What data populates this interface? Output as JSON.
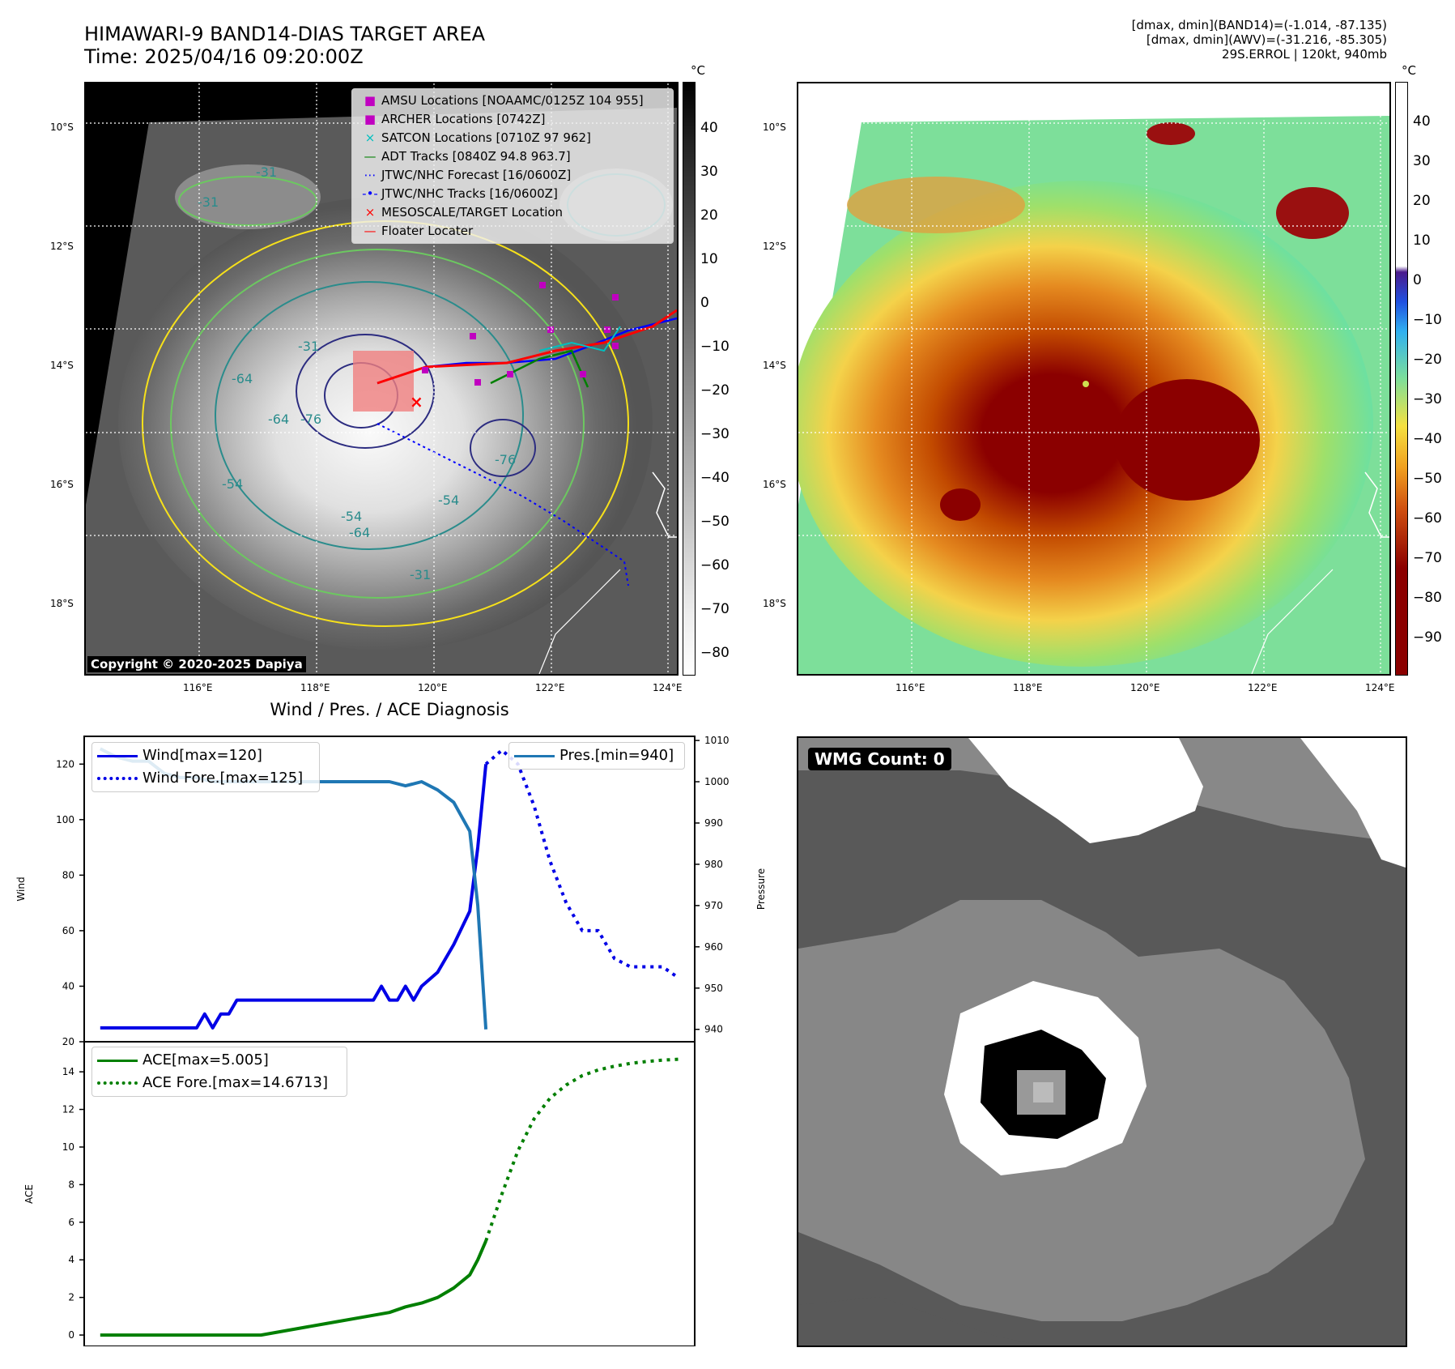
{
  "header": {
    "title_line1": "HIMAWARI-9 BAND14-DIAS TARGET AREA",
    "title_line2": "Time: 2025/04/16 09:20:00Z",
    "stats_line1": "[dmax, dmin](BAND14)=(-1.014, -87.135)",
    "stats_line2": "[dmax, dmin](AWV)=(-31.216, -85.305)",
    "stats_line3": "29S.ERROL | 120kt, 940mb"
  },
  "map": {
    "lat_labels": [
      "10°S",
      "12°S",
      "14°S",
      "16°S",
      "18°S"
    ],
    "lon_labels": [
      "116°E",
      "118°E",
      "120°E",
      "122°E",
      "124°E"
    ],
    "copyright": "Copyright © 2020-2025 Dapiya",
    "contour_labels": [
      "-31",
      "-31",
      "-31",
      "-31",
      "-54",
      "-54",
      "-64",
      "-64",
      "-64",
      "-76",
      "-76",
      "-54"
    ],
    "colors": {
      "land_line": "#ffffff",
      "contour_yellow": "#f7e11a",
      "contour_green": "#6cc860",
      "contour_teal": "#2a8c8c",
      "contour_navy": "#2c2c80"
    }
  },
  "legend": {
    "items": [
      {
        "label": "AMSU Locations [NOAAMC/0125Z 104 955]",
        "marker": "square",
        "color": "#c000c0"
      },
      {
        "label": "ARCHER Locations [0742Z]",
        "marker": "square",
        "color": "#c000c0"
      },
      {
        "label": "SATCON Locations [0710Z 97 962]",
        "marker": "x",
        "color": "#00c0c0"
      },
      {
        "label": "ADT Tracks [0840Z 94.8 963.7]",
        "marker": "line",
        "color": "#008000"
      },
      {
        "label": "JTWC/NHC Forecast [16/0600Z]",
        "marker": "dotted",
        "color": "#0000ff"
      },
      {
        "label": "JTWC/NHC Tracks [16/0600Z]",
        "marker": "line-dot",
        "color": "#0000ff"
      },
      {
        "label": "MESOSCALE/TARGET Location",
        "marker": "x",
        "color": "#ff0000"
      },
      {
        "label": "Floater Locater",
        "marker": "line",
        "color": "#ff0000"
      }
    ]
  },
  "colorbar_gray": {
    "unit": "°C",
    "ticks": [
      "40",
      "30",
      "20",
      "10",
      "0",
      "−10",
      "−20",
      "−30",
      "−40",
      "−50",
      "−60",
      "−70",
      "−80"
    ]
  },
  "colorbar_color": {
    "unit": "°C",
    "ticks": [
      "40",
      "30",
      "20",
      "10",
      "0",
      "−10",
      "−20",
      "−30",
      "−40",
      "−50",
      "−60",
      "−70",
      "−80",
      "−90"
    ]
  },
  "wmg": {
    "label": "WMG Count: 0"
  },
  "chart_data": [
    {
      "type": "line",
      "title": "Wind / Pres. / ACE Diagnosis",
      "ylabel": "Wind",
      "ylabel_right": "Pressure",
      "ylim": [
        20,
        130
      ],
      "ylim_right": [
        937,
        1011
      ],
      "yticks": [
        "120",
        "100",
        "80",
        "60",
        "40",
        "20"
      ],
      "yticks_right": [
        "1010",
        "1000",
        "990",
        "980",
        "970",
        "960",
        "950",
        "940"
      ],
      "legend_left": [
        "Wind[max=120]",
        "Wind Fore.[max=125]"
      ],
      "legend_right": [
        "Pres.[min=940]"
      ],
      "grid": false,
      "series": [
        {
          "name": "Wind[max=120]",
          "color": "#0000e6",
          "style": "solid",
          "x": [
            0,
            6,
            6.5,
            7,
            7.5,
            8,
            8.5,
            9.5,
            17,
            17.5,
            18,
            18.5,
            19,
            19.5,
            20,
            21,
            22,
            23,
            23.5,
            24
          ],
          "values": [
            25,
            25,
            30,
            25,
            30,
            30,
            35,
            35,
            35,
            40,
            35,
            35,
            40,
            35,
            40,
            45,
            55,
            67,
            90,
            120
          ]
        },
        {
          "name": "Wind Fore.[max=125]",
          "color": "#0000e6",
          "style": "dotted",
          "x": [
            24,
            25,
            26,
            27,
            28,
            29,
            30,
            31,
            32,
            33,
            34,
            35,
            36
          ],
          "values": [
            120,
            125,
            120,
            105,
            85,
            70,
            60,
            60,
            50,
            47,
            47,
            47,
            43
          ]
        },
        {
          "name": "Pres.[min=940]",
          "color": "#1f77b4",
          "style": "solid",
          "axis": "right",
          "x": [
            0,
            1,
            2,
            3,
            4,
            5,
            6,
            7,
            8,
            9,
            10,
            12,
            14,
            16,
            17,
            18,
            19,
            20,
            21,
            22,
            23,
            23.5,
            24
          ],
          "values": [
            1008,
            1006,
            1005,
            1005,
            1002,
            1001,
            1001,
            1000,
            1000,
            1000,
            1000,
            1000,
            1000,
            1000,
            1000,
            1000,
            999,
            1000,
            998,
            995,
            988,
            970,
            940
          ]
        }
      ]
    },
    {
      "type": "line",
      "ylabel": "ACE",
      "ylim": [
        -0.6,
        15.6
      ],
      "yticks": [
        "14",
        "12",
        "10",
        "8",
        "6",
        "4",
        "2",
        "0"
      ],
      "legend": [
        "ACE[max=5.005]",
        "ACE Fore.[max=14.6713]"
      ],
      "grid": false,
      "series": [
        {
          "name": "ACE[max=5.005]",
          "color": "#007f00",
          "style": "solid",
          "x": [
            0,
            10,
            14,
            18,
            19,
            20,
            21,
            22,
            23,
            23.5,
            24
          ],
          "values": [
            0,
            0,
            0.6,
            1.2,
            1.5,
            1.7,
            2.0,
            2.5,
            3.2,
            4.0,
            5.0
          ]
        },
        {
          "name": "ACE Fore.[max=14.6713]",
          "color": "#007f00",
          "style": "dotted",
          "x": [
            24,
            25,
            26,
            27,
            28,
            29,
            30,
            31,
            32,
            33,
            34,
            35,
            36
          ],
          "values": [
            5.0,
            7.5,
            9.8,
            11.5,
            12.6,
            13.3,
            13.8,
            14.1,
            14.3,
            14.45,
            14.55,
            14.62,
            14.67
          ]
        }
      ]
    }
  ]
}
